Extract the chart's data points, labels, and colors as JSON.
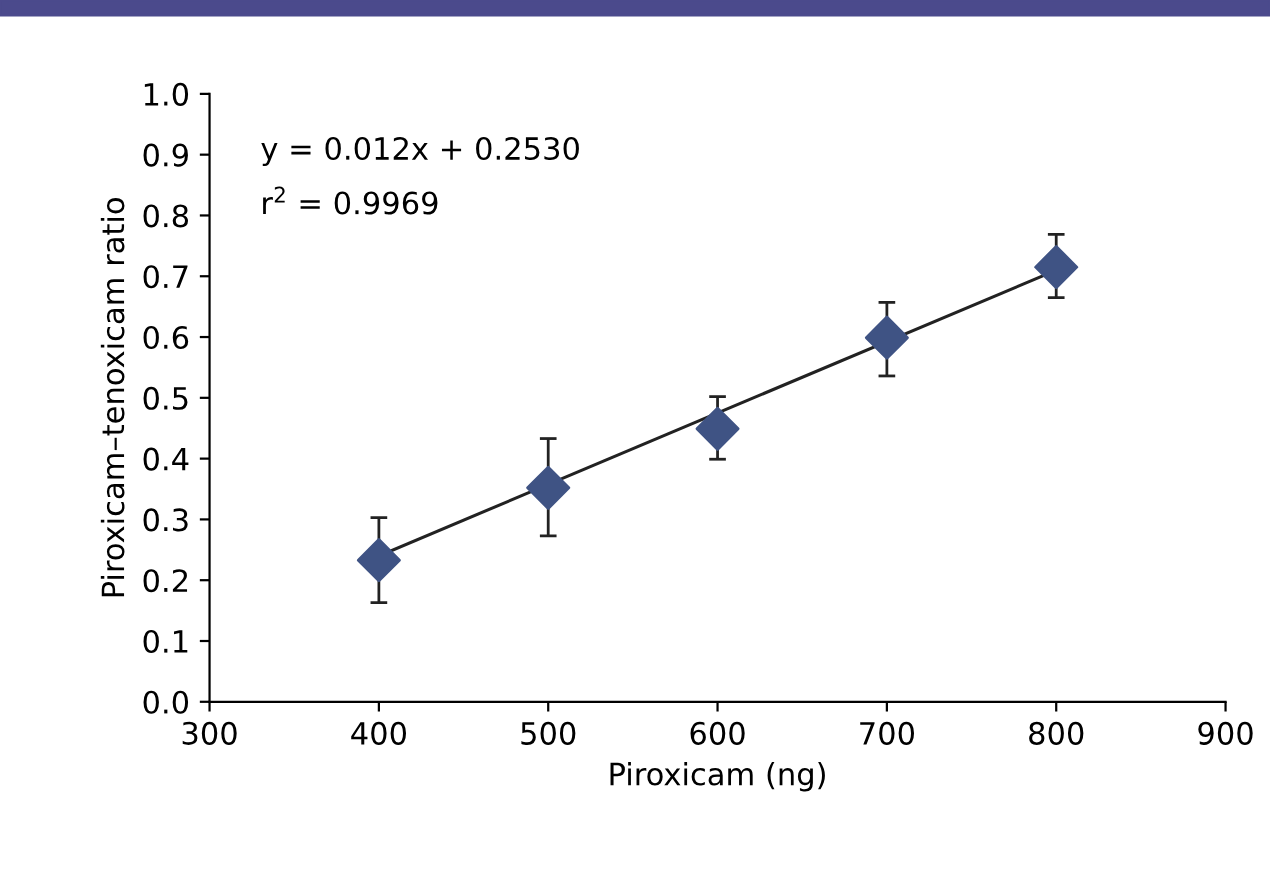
{
  "chart_data": {
    "type": "scatter",
    "xlabel": "Piroxicam (ng)",
    "ylabel": "Piroxicam–tenoxicam ratio",
    "x": [
      400,
      500,
      600,
      700,
      800
    ],
    "series": [
      {
        "color": "#3f5384",
        "marker": "diamond",
        "values": [
          0.233,
          0.352,
          0.449,
          0.599,
          0.715
        ],
        "errors": [
          [
            0.163,
            0.303
          ],
          [
            0.273,
            0.433
          ],
          [
            0.399,
            0.502
          ],
          [
            0.536,
            0.657
          ],
          [
            0.665,
            0.769
          ]
        ]
      },
      {
        "type": "line",
        "color": "#222222",
        "x": [
          400,
          800
        ],
        "values": [
          0.24,
          0.71
        ],
        "marker": "none",
        "line_style": "solid"
      }
    ],
    "annotations": [
      "y = 0.012x + 0.2530",
      "r$^{2}$ = 0.9969"
    ],
    "xlim": [
      300,
      900
    ],
    "xticks": [
      300,
      400,
      500,
      600,
      700,
      800,
      900
    ],
    "ylim": [
      0.0,
      1.0
    ],
    "yticks": [
      {
        "value": 0.0,
        "label": "0.0"
      },
      0.1,
      0.2,
      0.3,
      0.4,
      0.5,
      0.6,
      0.7,
      0.8,
      0.9,
      {
        "value": 1.0,
        "label": "1.0"
      }
    ],
    "grid": false,
    "legend": false
  }
}
